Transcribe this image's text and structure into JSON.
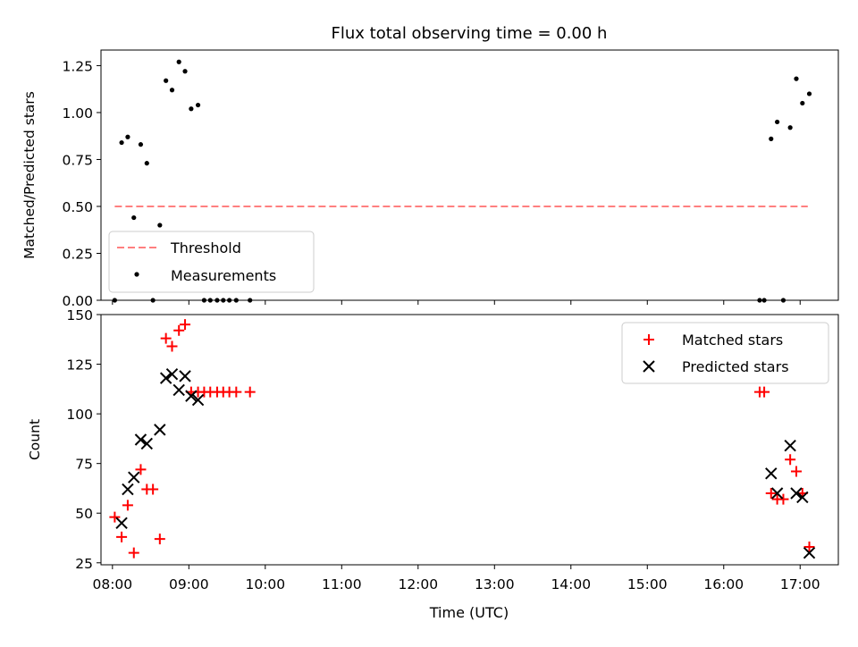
{
  "figure": {
    "title": "Flux total observing time = 0.00 h"
  },
  "chart_data": [
    {
      "type": "scatter",
      "title": "Flux total observing time = 0.00 h",
      "ylabel": "Matched/Predicted stars",
      "xlim": [
        7.85,
        17.5
      ],
      "ylim": [
        0,
        1.333
      ],
      "yticks": [
        0.0,
        0.25,
        0.5,
        0.75,
        1.0,
        1.25
      ],
      "ytick_labels": [
        "0.00",
        "0.25",
        "0.50",
        "0.75",
        "1.00",
        "1.25"
      ],
      "xticks": [
        8,
        9,
        10,
        11,
        12,
        13,
        14,
        15,
        16,
        17
      ],
      "grid": false,
      "legend_position": "lower-left",
      "series": [
        {
          "name": "Threshold",
          "kind": "line",
          "style": "dashed",
          "color": "#ff7f7f",
          "x": [
            8.03,
            17.1
          ],
          "y": [
            0.5,
            0.5
          ]
        },
        {
          "name": "Measurements",
          "kind": "points",
          "color": "#000000",
          "x": [
            8.03,
            8.12,
            8.2,
            8.28,
            8.37,
            8.45,
            8.53,
            8.62,
            8.7,
            8.78,
            8.87,
            8.95,
            9.03,
            9.12,
            9.2,
            9.28,
            9.37,
            9.45,
            9.53,
            9.62,
            9.8,
            16.47,
            16.53,
            16.62,
            16.7,
            16.78,
            16.87,
            16.95,
            17.03,
            17.12
          ],
          "y": [
            0.0,
            0.84,
            0.87,
            0.44,
            0.83,
            0.73,
            0.0,
            0.4,
            1.17,
            1.12,
            1.27,
            1.22,
            1.02,
            1.04,
            0.0,
            0.0,
            0.0,
            0.0,
            0.0,
            0.0,
            0.0,
            0.0,
            0.0,
            0.86,
            0.95,
            0.0,
            0.92,
            1.18,
            1.05,
            1.1
          ]
        }
      ]
    },
    {
      "type": "scatter",
      "xlabel": "Time (UTC)",
      "ylabel": "Count",
      "xlim": [
        7.85,
        17.5
      ],
      "ylim": [
        24,
        150
      ],
      "yticks": [
        25,
        50,
        75,
        100,
        125,
        150
      ],
      "ytick_labels": [
        "25",
        "50",
        "75",
        "100",
        "125",
        "150"
      ],
      "xticks": [
        8,
        9,
        10,
        11,
        12,
        13,
        14,
        15,
        16,
        17
      ],
      "xtick_labels": [
        "08:00",
        "09:00",
        "10:00",
        "11:00",
        "12:00",
        "13:00",
        "14:00",
        "15:00",
        "16:00",
        "17:00"
      ],
      "grid": false,
      "legend_position": "top-right",
      "series": [
        {
          "name": "Matched stars",
          "marker": "plus",
          "color": "#ff0000",
          "x": [
            8.03,
            8.12,
            8.2,
            8.28,
            8.37,
            8.45,
            8.53,
            8.62,
            8.7,
            8.78,
            8.87,
            8.95,
            9.03,
            9.12,
            9.2,
            9.28,
            9.37,
            9.45,
            9.53,
            9.62,
            9.8,
            16.47,
            16.53,
            16.62,
            16.7,
            16.78,
            16.87,
            16.95,
            17.03,
            17.12
          ],
          "y": [
            48,
            38,
            54,
            30,
            72,
            62,
            62,
            37,
            138,
            134,
            142,
            145,
            111,
            111,
            111,
            111,
            111,
            111,
            111,
            111,
            111,
            111,
            111,
            60,
            57,
            57,
            77,
            71,
            60,
            33
          ]
        },
        {
          "name": "Predicted stars",
          "marker": "x",
          "color": "#000000",
          "x": [
            8.12,
            8.2,
            8.28,
            8.37,
            8.45,
            8.62,
            8.7,
            8.78,
            8.87,
            8.95,
            9.03,
            9.12,
            16.62,
            16.7,
            16.87,
            16.95,
            17.03,
            17.12
          ],
          "y": [
            45,
            62,
            68,
            87,
            85,
            92,
            118,
            120,
            112,
            119,
            109,
            107,
            70,
            60,
            84,
            60,
            58,
            30
          ]
        }
      ]
    }
  ]
}
